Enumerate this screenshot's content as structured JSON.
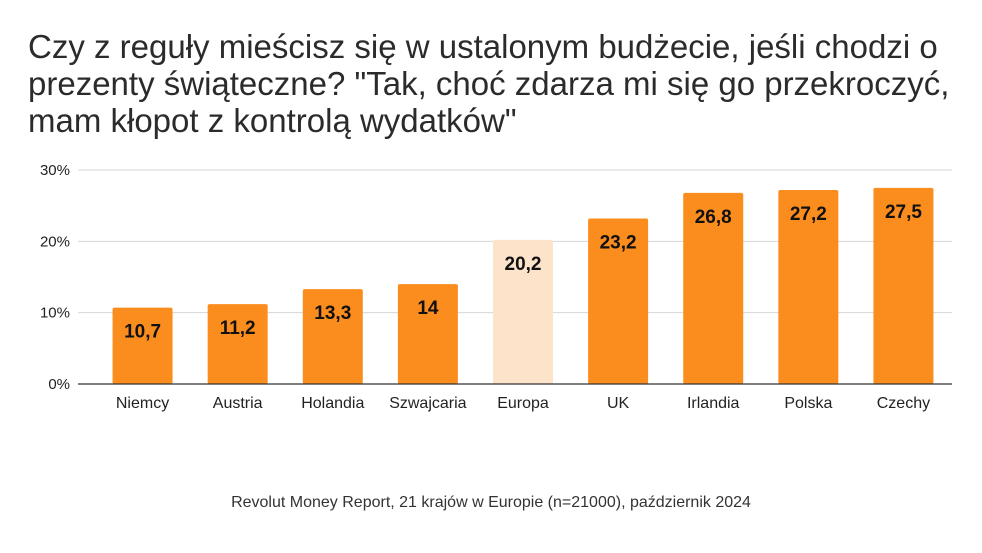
{
  "chart_data": {
    "type": "bar",
    "title": "Czy z reguły mieścisz się w ustalonym budżecie, jeśli chodzi o prezenty świąteczne? \"Tak, choć zdarza mi się go przekroczyć, mam kłopot z kontrolą wydatków\"",
    "categories": [
      "Niemcy",
      "Austria",
      "Holandia",
      "Szwajcaria",
      "Europa",
      "UK",
      "Irlandia",
      "Polska",
      "Czechy"
    ],
    "values": [
      10.7,
      11.2,
      13.3,
      14,
      20.2,
      23.2,
      26.8,
      27.2,
      27.5
    ],
    "data_labels": [
      "10,7",
      "11,2",
      "13,3",
      "14",
      "20,2",
      "23,2",
      "26,8",
      "27,2",
      "27,5"
    ],
    "highlight_category": "Europa",
    "ylim": [
      0,
      30
    ],
    "yticks": [
      0,
      10,
      20,
      30
    ],
    "ytick_labels": [
      "0%",
      "10%",
      "20%",
      "30%"
    ],
    "xlabel": "",
    "ylabel": "",
    "grid": true,
    "colors": {
      "bar": "#FB8C1E",
      "highlight": "#FDE3CA",
      "grid": "#d6d6d6",
      "axis": "#333333"
    }
  },
  "source": "Revolut Money Report, 21 krajów w Europie (n=21000), październik 2024"
}
